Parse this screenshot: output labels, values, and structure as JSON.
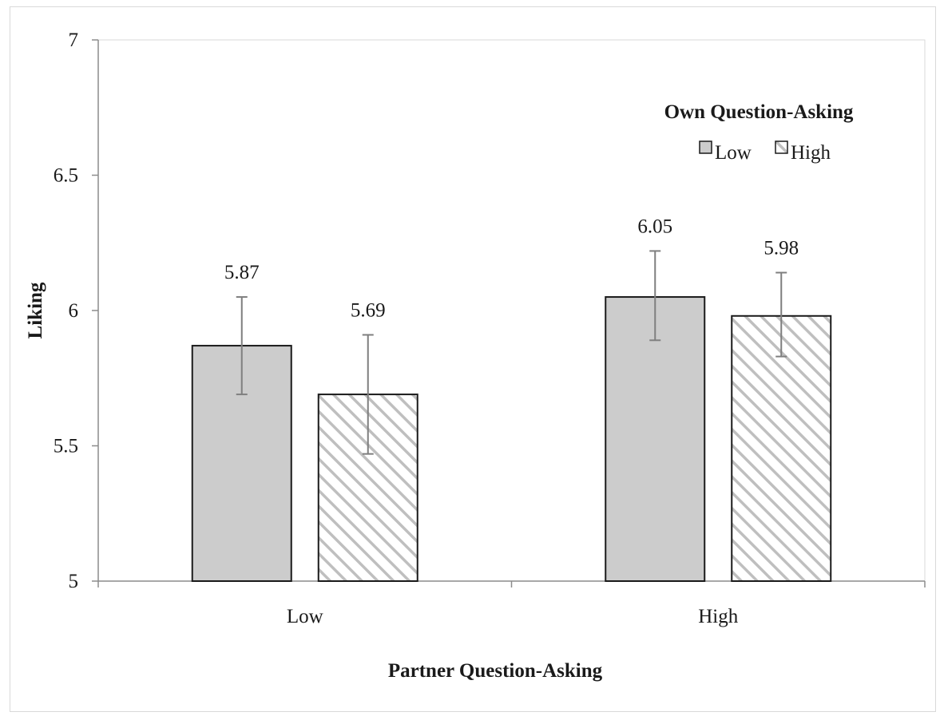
{
  "chart_data": {
    "type": "bar",
    "categories": [
      "Low",
      "High"
    ],
    "series": [
      {
        "name": "Low",
        "values": [
          5.87,
          6.05
        ],
        "error_low": [
          5.69,
          5.89
        ],
        "error_high": [
          6.05,
          6.22
        ],
        "fill": "#cccccc",
        "pattern": "solid"
      },
      {
        "name": "High",
        "values": [
          5.69,
          5.98
        ],
        "error_low": [
          5.47,
          5.83
        ],
        "error_high": [
          5.91,
          6.14
        ],
        "fill": "#ffffff",
        "pattern": "diagonal-hatch"
      }
    ],
    "data_labels": [
      [
        "5.87",
        "6.05"
      ],
      [
        "5.69",
        "5.98"
      ]
    ],
    "title": "",
    "xlabel": "Partner Question-Asking",
    "ylabel": "Liking",
    "ylim": [
      5,
      7
    ],
    "yticks": [
      5,
      5.5,
      6,
      6.5,
      7
    ],
    "ytick_labels": [
      "5",
      "5.5",
      "6",
      "6.5",
      "7"
    ],
    "legend": {
      "title": "Own Question-Asking",
      "placement": "top-right",
      "entries": [
        "Low",
        "High"
      ]
    },
    "grid": false,
    "colors": {
      "bar_stroke": "#1a1a1a",
      "error_bar": "#7f7f7f",
      "hatch": "#bfbfbf",
      "axis": "#8c8c8c"
    }
  }
}
